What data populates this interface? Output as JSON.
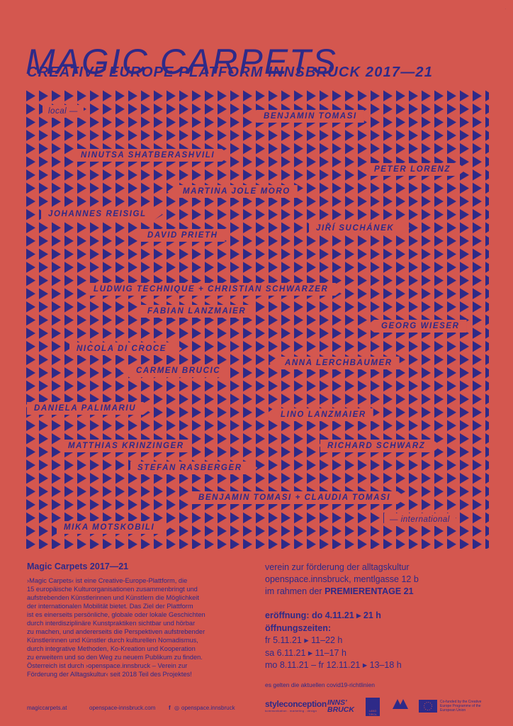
{
  "header": {
    "title": "MAGIC CARPETS",
    "subtitle": "CREATIVE EUROPE PLATFORM INNSBRUCK 2017—21"
  },
  "pattern_labels": {
    "local": "local —",
    "international": "— international"
  },
  "artists": [
    "BENJAMIN TOMASI",
    "NINUTSA SHATBERASHVILI",
    "PETER LORENZ",
    "MARTINA JOLE MORO",
    "JOHANNES REISIGL",
    "DAVID PRIETH",
    "JIŘÍ SUCHÁNEK",
    "LUDWIG TECHNIQUE + CHRISTIAN SCHWARZER",
    "FABIAN LANZMAIER",
    "GEORG WIESER",
    "NICOLA DI CROCE",
    "ANNA LERCHBAUMER",
    "CARMEN BRUCIC",
    "DANIELA PALIMARIU",
    "LINO LANZMAIER",
    "MATTHIAS KRINZINGER",
    "RICHARD SCHWARZ",
    "STEFAN RASBERGER",
    "BENJAMIN TOMASI + CLAUDIA TOMASI",
    "MIKA MOTSKOBILI"
  ],
  "info": {
    "heading": "Magic Carpets 2017—21",
    "lines": [
      "›Magic Carpets‹ ist eine Creative-Europe-Plattform, die",
      "15 europäische Kulturorganisationen zusammenbringt und",
      "aufstrebenden Künstlerinnen und Künstlern die Möglichkeit",
      "der internationalen Mobilität bietet. Das Ziel der Plattform",
      "ist es einerseits persönliche, globale oder lokale Geschichten",
      "durch interdisziplinäre Kunstpraktiken sichtbar und hörbar",
      "zu machen, und andererseits die Perspektiven aufstrebender",
      "Künstlerinnen und Künstler durch kulturellen Nomadismus,",
      "durch integrative Methoden, Ko-Kreation und Kooperation",
      "zu erweitern und so den Weg zu neuem Publikum zu finden.",
      "Österreich ist durch ›openspace.innsbruck – Verein zur",
      "Förderung der Alltagskultur‹ seit 2018 Teil des Projektes!"
    ]
  },
  "organizer": {
    "line1": "verein zur förderung der alltagskultur",
    "line2": "openspace.innsbruck, mentlgasse 12 b",
    "line3_prefix": "im rahmen der ",
    "line3_bold": "PREMIERENTAGE 21"
  },
  "schedule": {
    "opening": "eröffnung: do 4.11.21 ▸ 21 h",
    "hours_heading": "öffnungszeiten:",
    "hours": [
      "fr 5.11.21 ▸ 11–22 h",
      "sa 6.11.21 ▸ 11–17 h",
      "mo 8.11.21 – fr 12.11.21 ▸ 13–18 h"
    ],
    "covid_note": "es gelten die aktuellen covid19-richtlinien"
  },
  "footer": {
    "links": [
      "magiccarpets.at",
      "openspace-innsbruck.com",
      "openspace.innsbruck"
    ],
    "social_icons": [
      "facebook-icon",
      "instagram-icon"
    ],
    "logos": {
      "styleconception": "styleconception",
      "styleconception_tagline": "kommunikation . marketing . design",
      "innsbruck": "INNS' BRUCK",
      "land": "LAND TIROL",
      "eu_text": "Co-funded by the Creative Europe Programme of the European Union"
    }
  },
  "colors": {
    "background": "#d4574f",
    "ink": "#2e2a88"
  }
}
